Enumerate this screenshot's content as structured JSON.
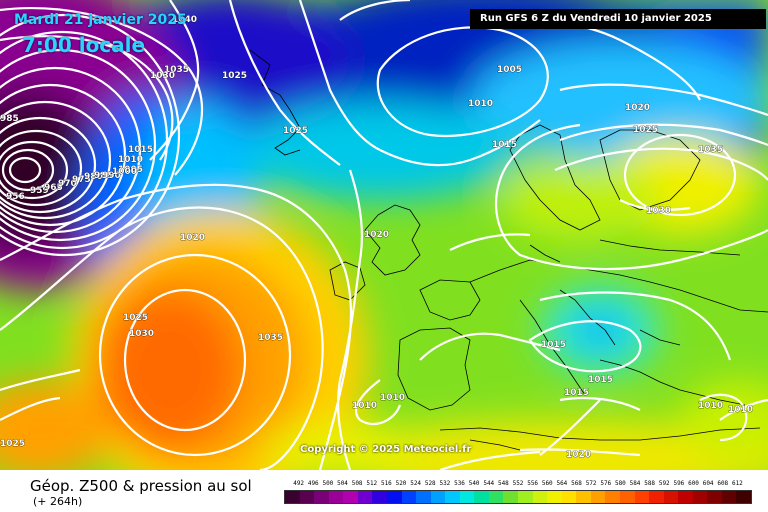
{
  "header": {
    "date": "Mardi 21 janvier 2025",
    "time": "7:00 locale",
    "run": "Run GFS 6 Z du Vendredi 10 janvier 2025"
  },
  "copyright": "Copyright © 2025 Meteociel.fr",
  "footer": {
    "title": "Géop. Z500 & pression au sol",
    "subtitle": "(+ 264h)"
  },
  "scale": {
    "labels": [
      "492",
      "496",
      "500",
      "504",
      "508",
      "512",
      "516",
      "520",
      "524",
      "528",
      "532",
      "536",
      "540",
      "544",
      "548",
      "552",
      "556",
      "560",
      "564",
      "568",
      "572",
      "576",
      "580",
      "584",
      "588",
      "592",
      "596",
      "600",
      "604",
      "608",
      "612"
    ],
    "colors": [
      "#3a0030",
      "#5a0050",
      "#7a0078",
      "#9a0098",
      "#b000b0",
      "#7000d0",
      "#3000e0",
      "#0010f0",
      "#0040ff",
      "#0070ff",
      "#00a0ff",
      "#00c8ff",
      "#00e8e0",
      "#00e0a0",
      "#30e060",
      "#70e030",
      "#a0f020",
      "#d0f010",
      "#f0f000",
      "#ffe000",
      "#ffc000",
      "#ffa000",
      "#ff8000",
      "#ff6000",
      "#ff4000",
      "#f02000",
      "#d81000",
      "#c00000",
      "#a00000",
      "#800000",
      "#600000",
      "#400000"
    ]
  },
  "isobar_labels": [
    {
      "text": "1040"
    },
    {
      "text": "1035"
    },
    {
      "text": "1030"
    },
    {
      "text": "1025"
    },
    {
      "text": "1025"
    },
    {
      "text": "1015"
    },
    {
      "text": "1010"
    },
    {
      "text": "1005"
    },
    {
      "text": "1020"
    },
    {
      "text": "1020"
    },
    {
      "text": "1005"
    },
    {
      "text": "1010"
    },
    {
      "text": "1015"
    },
    {
      "text": "1020"
    },
    {
      "text": "1025"
    },
    {
      "text": "1035"
    },
    {
      "text": "1030"
    },
    {
      "text": "1025"
    },
    {
      "text": "1030"
    },
    {
      "text": "1035"
    },
    {
      "text": "1015"
    },
    {
      "text": "1015"
    },
    {
      "text": "1015"
    },
    {
      "text": "1010"
    },
    {
      "text": "1010"
    },
    {
      "text": "1010"
    },
    {
      "text": "1010"
    },
    {
      "text": "1020"
    },
    {
      "text": "1025"
    },
    {
      "text": "985"
    },
    {
      "text": "956"
    },
    {
      "text": "959"
    },
    {
      "text": "965"
    },
    {
      "text": "970"
    },
    {
      "text": "975"
    },
    {
      "text": "980"
    },
    {
      "text": "985"
    },
    {
      "text": "990"
    },
    {
      "text": "1000"
    }
  ]
}
